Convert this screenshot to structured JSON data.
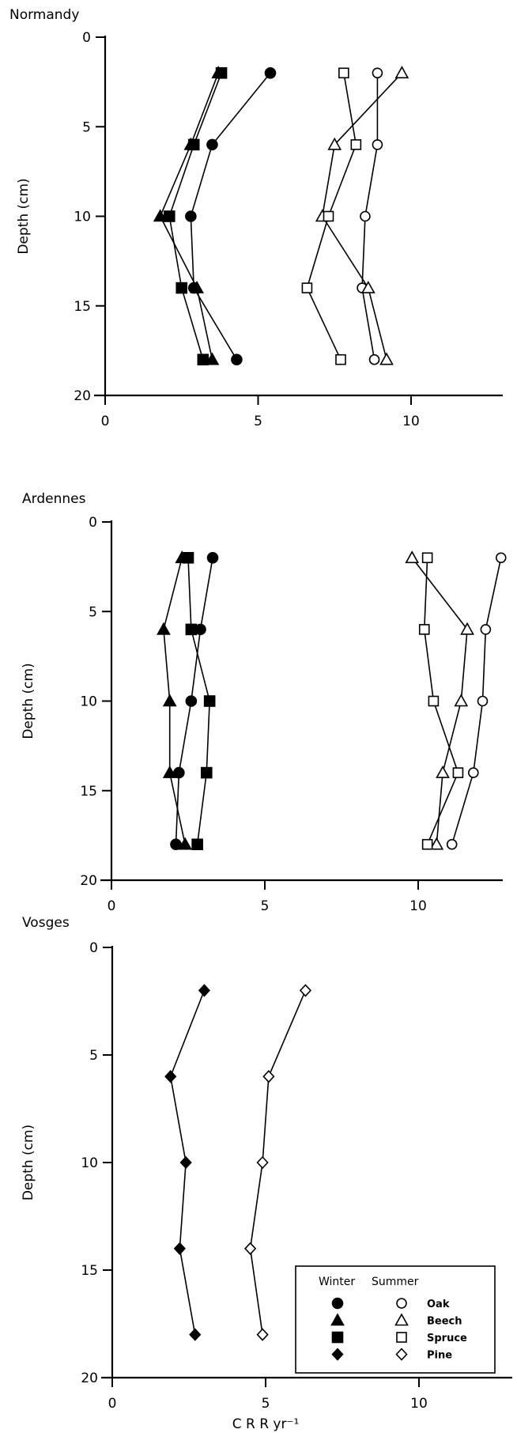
{
  "chart_data": [
    {
      "type": "line",
      "title": "Normandy",
      "ylabel": "Depth (cm)",
      "xlabel": "",
      "xlim": [
        0,
        13
      ],
      "ylim": [
        20,
        0
      ],
      "xticks": [
        0,
        5,
        10
      ],
      "yticks": [
        0,
        5,
        10,
        15,
        20
      ],
      "depths": [
        2,
        6,
        10,
        14,
        18
      ],
      "series": [
        {
          "name": "Oak",
          "season": "Winter",
          "marker": "circle",
          "filled": true,
          "values": [
            5.4,
            3.5,
            2.8,
            2.9,
            4.3
          ]
        },
        {
          "name": "Beech",
          "season": "Winter",
          "marker": "triangle",
          "filled": true,
          "values": [
            3.7,
            2.8,
            1.8,
            3.0,
            3.5
          ]
        },
        {
          "name": "Spruce",
          "season": "Winter",
          "marker": "square",
          "filled": true,
          "values": [
            3.8,
            2.9,
            2.1,
            2.5,
            3.2
          ]
        },
        {
          "name": "Oak",
          "season": "Summer",
          "marker": "circle",
          "filled": false,
          "values": [
            8.9,
            8.9,
            8.5,
            8.4,
            8.8
          ]
        },
        {
          "name": "Beech",
          "season": "Summer",
          "marker": "triangle",
          "filled": false,
          "values": [
            9.7,
            7.5,
            7.1,
            8.6,
            9.2
          ]
        },
        {
          "name": "Spruce",
          "season": "Summer",
          "marker": "square",
          "filled": false,
          "values": [
            7.8,
            8.2,
            7.3,
            6.6,
            7.7
          ]
        }
      ]
    },
    {
      "type": "line",
      "title": "Ardennes",
      "ylabel": "Depth (cm)",
      "xlabel": "",
      "xlim": [
        0,
        13
      ],
      "ylim": [
        20,
        0
      ],
      "xticks": [
        0,
        5,
        10
      ],
      "yticks": [
        0,
        5,
        10,
        15,
        20
      ],
      "depths": [
        2,
        6,
        10,
        14,
        18
      ],
      "series": [
        {
          "name": "Oak",
          "season": "Winter",
          "marker": "circle",
          "filled": true,
          "values": [
            3.3,
            2.9,
            2.6,
            2.2,
            2.1
          ]
        },
        {
          "name": "Beech",
          "season": "Winter",
          "marker": "triangle",
          "filled": true,
          "values": [
            2.3,
            1.7,
            1.9,
            1.9,
            2.4
          ]
        },
        {
          "name": "Spruce",
          "season": "Winter",
          "marker": "square",
          "filled": true,
          "values": [
            2.5,
            2.6,
            3.2,
            3.1,
            2.8
          ]
        },
        {
          "name": "Oak",
          "season": "Summer",
          "marker": "circle",
          "filled": false,
          "values": [
            12.7,
            12.2,
            12.1,
            11.8,
            11.1
          ]
        },
        {
          "name": "Beech",
          "season": "Summer",
          "marker": "triangle",
          "filled": false,
          "values": [
            9.8,
            11.6,
            11.4,
            10.8,
            10.6
          ]
        },
        {
          "name": "Spruce",
          "season": "Summer",
          "marker": "square",
          "filled": false,
          "values": [
            10.3,
            10.2,
            10.5,
            11.3,
            10.3
          ]
        }
      ]
    },
    {
      "type": "line",
      "title": "Vosges",
      "ylabel": "Depth (cm)",
      "xlabel": "C R R yr⁻¹",
      "xlim": [
        0,
        13
      ],
      "ylim": [
        20,
        0
      ],
      "xticks": [
        0,
        5,
        10
      ],
      "yticks": [
        0,
        5,
        10,
        15,
        20
      ],
      "depths": [
        2,
        6,
        10,
        14,
        18
      ],
      "series": [
        {
          "name": "Pine",
          "season": "Winter",
          "marker": "diamond",
          "filled": true,
          "values": [
            3.0,
            1.9,
            2.4,
            2.2,
            2.7
          ]
        },
        {
          "name": "Pine",
          "season": "Summer",
          "marker": "diamond",
          "filled": false,
          "values": [
            6.3,
            5.1,
            4.9,
            4.5,
            4.9
          ]
        }
      ],
      "legend": {
        "position": "bottom-right",
        "header_winter": "Winter",
        "header_summer": "Summer",
        "entries": [
          {
            "label": "Oak",
            "marker": "circle"
          },
          {
            "label": "Beech",
            "marker": "triangle"
          },
          {
            "label": "Spruce",
            "marker": "square"
          },
          {
            "label": "Pine",
            "marker": "diamond"
          }
        ]
      }
    }
  ]
}
